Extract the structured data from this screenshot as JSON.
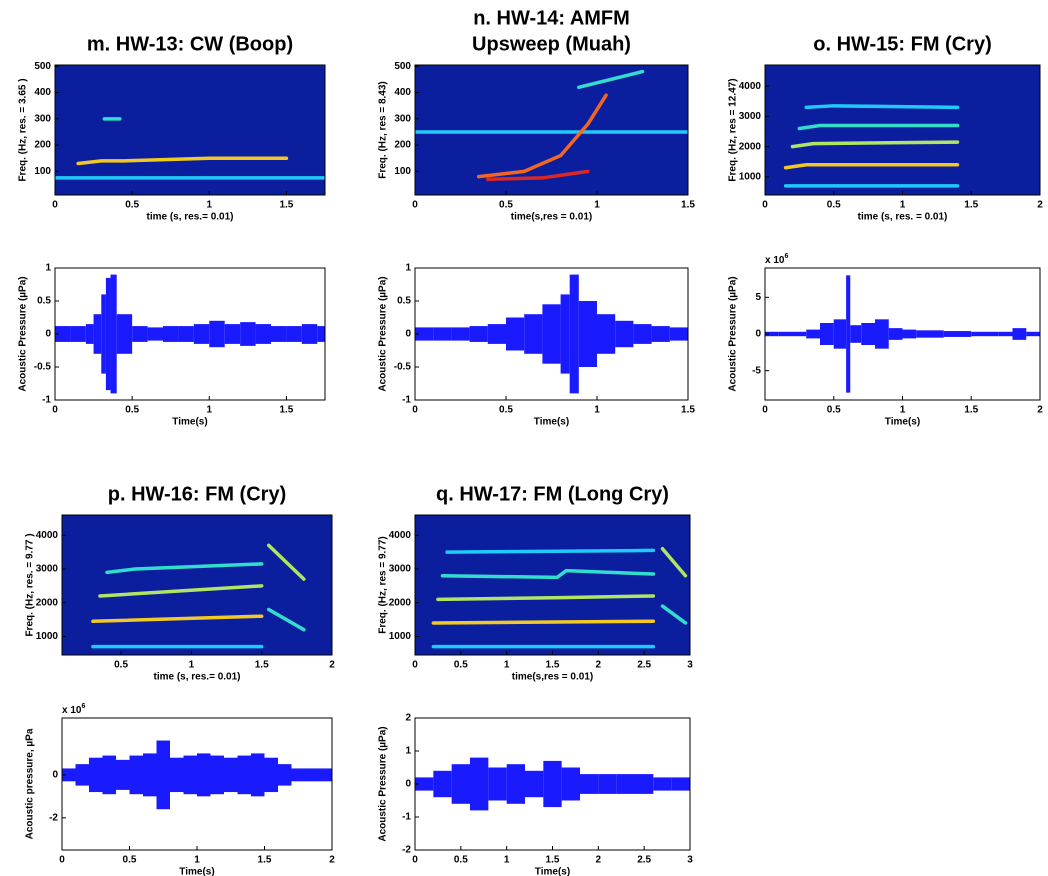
{
  "chart_data": [
    {
      "type": "spectrogram",
      "title": [
        "m. HW-13: CW (Boop)"
      ],
      "xlabel": "time (s, res.= 0.01)",
      "ylabel": "Freq. (Hz, res. = 3.65 )",
      "xlim": [
        0,
        1.75
      ],
      "xticks": [
        0,
        0.5,
        1,
        1.5
      ],
      "ylim": [
        10,
        505
      ],
      "yticks": [
        100,
        200,
        300,
        400,
        500
      ],
      "background": "#0b1f9e",
      "tracks": [
        {
          "x": [
            0,
            1.75
          ],
          "values": [
            75,
            75
          ],
          "color": "#22d4ff"
        },
        {
          "x": [
            0.15,
            0.3,
            0.45,
            1.0,
            1.5
          ],
          "values": [
            130,
            140,
            140,
            150,
            150
          ],
          "color": "#ffd21f"
        },
        {
          "x": [
            0.32,
            0.42
          ],
          "values": [
            300,
            300
          ],
          "color": "#35e8d0"
        }
      ]
    },
    {
      "type": "spectrogram",
      "title": [
        "n. HW-14: AMFM",
        "Upsweep (Muah)"
      ],
      "xlabel": "time(s,res = 0.01)",
      "ylabel": "Freq. (Hz, res = 8.43)",
      "xlim": [
        0,
        1.5
      ],
      "xticks": [
        0,
        0.5,
        1,
        1.5
      ],
      "ylim": [
        10,
        505
      ],
      "yticks": [
        100,
        200,
        300,
        400,
        500
      ],
      "background": "#0b1f9e",
      "tracks": [
        {
          "x": [
            0,
            1.5
          ],
          "values": [
            250,
            250
          ],
          "color": "#22d4ff"
        },
        {
          "x": [
            0.35,
            0.6,
            0.8,
            0.95,
            1.05
          ],
          "values": [
            80,
            100,
            160,
            280,
            390
          ],
          "color": "#ff6a1a"
        },
        {
          "x": [
            0.4,
            0.7,
            0.95
          ],
          "values": [
            70,
            75,
            100
          ],
          "color": "#e8281c"
        },
        {
          "x": [
            0.9,
            1.25
          ],
          "values": [
            420,
            480
          ],
          "color": "#35e8d0"
        }
      ]
    },
    {
      "type": "spectrogram",
      "title": [
        "o. HW-15: FM (Cry)"
      ],
      "xlabel": "time (s, res. = 0.01)",
      "ylabel": "Freq. (Hz, res = 12.47)",
      "xlim": [
        0,
        2
      ],
      "xticks": [
        0,
        0.5,
        1,
        1.5,
        2
      ],
      "ylim": [
        400,
        4700
      ],
      "yticks": [
        1000,
        2000,
        3000,
        4000
      ],
      "background": "#0b1f9e",
      "tracks": [
        {
          "x": [
            0.15,
            1.4
          ],
          "values": [
            700,
            700
          ],
          "color": "#22d4ff"
        },
        {
          "x": [
            0.15,
            0.3,
            1.4
          ],
          "values": [
            1300,
            1400,
            1400
          ],
          "color": "#ffd21f"
        },
        {
          "x": [
            0.2,
            0.35,
            1.4
          ],
          "values": [
            2000,
            2100,
            2150
          ],
          "color": "#b8f060"
        },
        {
          "x": [
            0.25,
            0.4,
            1.4
          ],
          "values": [
            2600,
            2700,
            2700
          ],
          "color": "#35e8d0"
        },
        {
          "x": [
            0.3,
            0.5,
            1.4
          ],
          "values": [
            3300,
            3350,
            3300
          ],
          "color": "#22d4ff"
        }
      ]
    },
    {
      "type": "waveform",
      "xlabel": "Time(s)",
      "ylabel": "Acoustic Pressure (µPa)",
      "color": "#1a1aff",
      "xlim": [
        0,
        1.75
      ],
      "xticks": [
        0,
        0.5,
        1,
        1.5
      ],
      "ylim": [
        -1,
        1
      ],
      "yticks": [
        -1,
        -0.5,
        0,
        0.5,
        1
      ],
      "x": [
        0,
        0.1,
        0.2,
        0.25,
        0.3,
        0.33,
        0.36,
        0.4,
        0.5,
        0.6,
        0.7,
        0.8,
        0.9,
        1.0,
        1.1,
        1.2,
        1.3,
        1.4,
        1.5,
        1.6,
        1.7
      ],
      "values": [
        0.12,
        0.12,
        0.15,
        0.3,
        0.6,
        0.85,
        0.9,
        0.3,
        0.12,
        0.1,
        0.12,
        0.12,
        0.15,
        0.2,
        0.15,
        0.18,
        0.15,
        0.12,
        0.12,
        0.15,
        0.12
      ]
    },
    {
      "type": "waveform",
      "xlabel": "Time(s)",
      "ylabel": "Acoustic Pressure (µPa)",
      "color": "#1a1aff",
      "xlim": [
        0,
        1.5
      ],
      "xticks": [
        0,
        0.5,
        1,
        1.5
      ],
      "ylim": [
        -1,
        1
      ],
      "yticks": [
        -1,
        -0.5,
        0,
        0.5,
        1
      ],
      "x": [
        0,
        0.1,
        0.2,
        0.3,
        0.4,
        0.5,
        0.6,
        0.7,
        0.8,
        0.85,
        0.9,
        1.0,
        1.1,
        1.2,
        1.3,
        1.4
      ],
      "values": [
        0.1,
        0.1,
        0.1,
        0.12,
        0.15,
        0.25,
        0.3,
        0.45,
        0.6,
        0.9,
        0.5,
        0.3,
        0.2,
        0.15,
        0.12,
        0.1
      ]
    },
    {
      "type": "waveform",
      "xlabel": "Time(s)",
      "ylabel": "Acoustic Pressure (µPa)",
      "color": "#1a1aff",
      "y_multiplier": "x 10",
      "y_multiplier_exp": "6",
      "xlim": [
        0,
        2
      ],
      "xticks": [
        0,
        0.5,
        1,
        1.5,
        2
      ],
      "ylim": [
        -9,
        9
      ],
      "yticks": [
        -5,
        0,
        5
      ],
      "x": [
        0,
        0.1,
        0.2,
        0.3,
        0.4,
        0.5,
        0.59,
        0.62,
        0.7,
        0.8,
        0.9,
        1.0,
        1.1,
        1.2,
        1.3,
        1.4,
        1.5,
        1.6,
        1.7,
        1.8,
        1.9
      ],
      "values": [
        0.3,
        0.3,
        0.3,
        0.6,
        1.5,
        2,
        8,
        1.2,
        1.5,
        2,
        0.8,
        0.6,
        0.5,
        0.5,
        0.4,
        0.4,
        0.3,
        0.3,
        0.3,
        0.8,
        0.3
      ]
    },
    {
      "type": "spectrogram",
      "title": [
        "p. HW-16: FM (Cry)"
      ],
      "xlabel": "time (s, res.= 0.01)",
      "ylabel": "Freq. (Hz, res. = 9.77 )",
      "xlim": [
        0.08,
        2
      ],
      "xticks": [
        0.5,
        1,
        1.5,
        2
      ],
      "ylim": [
        450,
        4600
      ],
      "yticks": [
        1000,
        2000,
        3000,
        4000
      ],
      "background": "#0b1f9e",
      "tracks": [
        {
          "x": [
            0.3,
            1.5
          ],
          "values": [
            700,
            700
          ],
          "color": "#22d4ff"
        },
        {
          "x": [
            0.3,
            1.5
          ],
          "values": [
            1450,
            1600
          ],
          "color": "#ffd21f"
        },
        {
          "x": [
            0.35,
            1.5
          ],
          "values": [
            2200,
            2500
          ],
          "color": "#b8f060"
        },
        {
          "x": [
            0.4,
            0.6,
            1.5
          ],
          "values": [
            2900,
            3000,
            3150
          ],
          "color": "#35e8d0"
        },
        {
          "x": [
            1.55,
            1.8
          ],
          "values": [
            3700,
            2700
          ],
          "color": "#b8f060"
        },
        {
          "x": [
            1.55,
            1.8
          ],
          "values": [
            1800,
            1200
          ],
          "color": "#35e8d0"
        }
      ]
    },
    {
      "type": "spectrogram",
      "title": [
        "q. HW-17: FM (Long Cry)"
      ],
      "xlabel": "time(s,res = 0.01)",
      "ylabel": "Freq. (Hz, res = 9.77)",
      "xlim": [
        0,
        3
      ],
      "xticks": [
        0,
        0.5,
        1,
        1.5,
        2,
        2.5,
        3
      ],
      "ylim": [
        450,
        4600
      ],
      "yticks": [
        1000,
        2000,
        3000,
        4000
      ],
      "background": "#0b1f9e",
      "tracks": [
        {
          "x": [
            0.2,
            2.6
          ],
          "values": [
            700,
            700
          ],
          "color": "#22d4ff"
        },
        {
          "x": [
            0.2,
            2.6
          ],
          "values": [
            1400,
            1450
          ],
          "color": "#ffd21f"
        },
        {
          "x": [
            0.25,
            1.6,
            2.6
          ],
          "values": [
            2100,
            2150,
            2200
          ],
          "color": "#b8f060"
        },
        {
          "x": [
            0.3,
            1.55,
            1.65,
            2.6
          ],
          "values": [
            2800,
            2750,
            2950,
            2850
          ],
          "color": "#35e8d0"
        },
        {
          "x": [
            0.35,
            2.6
          ],
          "values": [
            3500,
            3550
          ],
          "color": "#22d4ff"
        },
        {
          "x": [
            2.7,
            2.95
          ],
          "values": [
            3600,
            2800
          ],
          "color": "#b8f060"
        },
        {
          "x": [
            2.7,
            2.95
          ],
          "values": [
            1900,
            1400
          ],
          "color": "#35e8d0"
        }
      ]
    },
    {
      "type": "waveform",
      "xlabel": "Time(s)",
      "ylabel": "Acoustic pressure,  µPa",
      "color": "#1a1aff",
      "y_multiplier": "x 10",
      "y_multiplier_exp": "6",
      "xlim": [
        0,
        2
      ],
      "xticks": [
        0,
        0.5,
        1,
        1.5,
        2
      ],
      "ylim": [
        -3.5,
        2.65
      ],
      "yticks": [
        -2,
        0
      ],
      "x": [
        0,
        0.1,
        0.2,
        0.3,
        0.4,
        0.5,
        0.6,
        0.7,
        0.8,
        0.9,
        1.0,
        1.1,
        1.2,
        1.3,
        1.4,
        1.5,
        1.6,
        1.7,
        1.8,
        1.9
      ],
      "values": [
        0.3,
        0.5,
        0.8,
        0.9,
        0.7,
        0.9,
        1,
        1.6,
        0.8,
        0.9,
        1,
        0.9,
        0.8,
        0.9,
        1,
        0.8,
        0.5,
        0.3,
        0.3,
        0.3
      ]
    },
    {
      "type": "waveform",
      "xlabel": "Time(s)",
      "ylabel": "Acoustic Pressure (µPa)",
      "color": "#1a1aff",
      "xlim": [
        0,
        3
      ],
      "xticks": [
        0,
        0.5,
        1,
        1.5,
        2,
        2.5,
        3
      ],
      "ylim": [
        -2,
        2
      ],
      "yticks": [
        -2,
        -1,
        0,
        1,
        2
      ],
      "x": [
        0,
        0.2,
        0.4,
        0.6,
        0.8,
        1.0,
        1.2,
        1.4,
        1.6,
        1.8,
        2.0,
        2.2,
        2.4,
        2.6,
        2.8
      ],
      "values": [
        0.2,
        0.4,
        0.6,
        0.8,
        0.5,
        0.6,
        0.4,
        0.7,
        0.5,
        0.3,
        0.3,
        0.3,
        0.3,
        0.2,
        0.2
      ]
    }
  ]
}
